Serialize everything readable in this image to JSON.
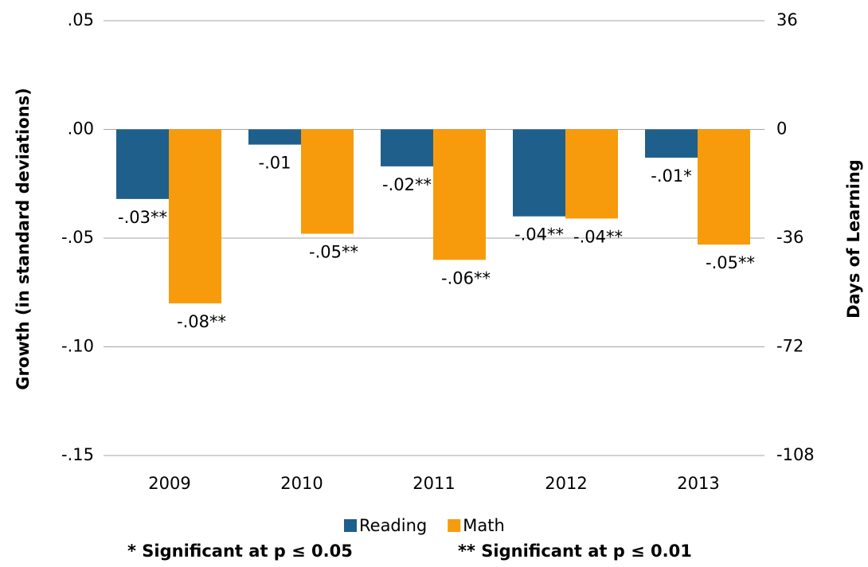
{
  "chart_data": {
    "type": "bar",
    "ylabel": "Growth (in standard deviations)",
    "y2label": "Days of Learning",
    "categories": [
      "2009",
      "2010",
      "2011",
      "2012",
      "2013"
    ],
    "series": [
      {
        "name": "Reading",
        "color": "#1f5f8b",
        "values": [
          -0.032,
          -0.007,
          -0.017,
          -0.04,
          -0.013
        ],
        "value_labels": [
          "-.03**",
          "-.01",
          "-.02**",
          "-.04**",
          "-.01*"
        ]
      },
      {
        "name": "Math",
        "color": "#f79b0c",
        "values": [
          -0.08,
          -0.048,
          -0.06,
          -0.041,
          -0.053
        ],
        "value_labels": [
          "-.08**",
          "-.05**",
          "-.06**",
          "-.04**",
          "-.05**"
        ]
      }
    ],
    "ylim": [
      -0.15,
      0.05
    ],
    "yticks": [
      {
        "value": -0.15,
        "label": "-.15"
      },
      {
        "value": -0.1,
        "label": "-.10"
      },
      {
        "value": -0.05,
        "label": "-.05"
      },
      {
        "value": 0,
        "label": ".00"
      },
      {
        "value": 0.05,
        "label": ".05"
      }
    ],
    "y2lim": [
      -108,
      36
    ],
    "y2ticks": [
      -108,
      -72,
      -36,
      0,
      36
    ],
    "grid": true,
    "legend": "bottom",
    "notes": [
      "* Significant at p ≤ 0.05",
      "** Significant at p ≤ 0.01"
    ]
  }
}
